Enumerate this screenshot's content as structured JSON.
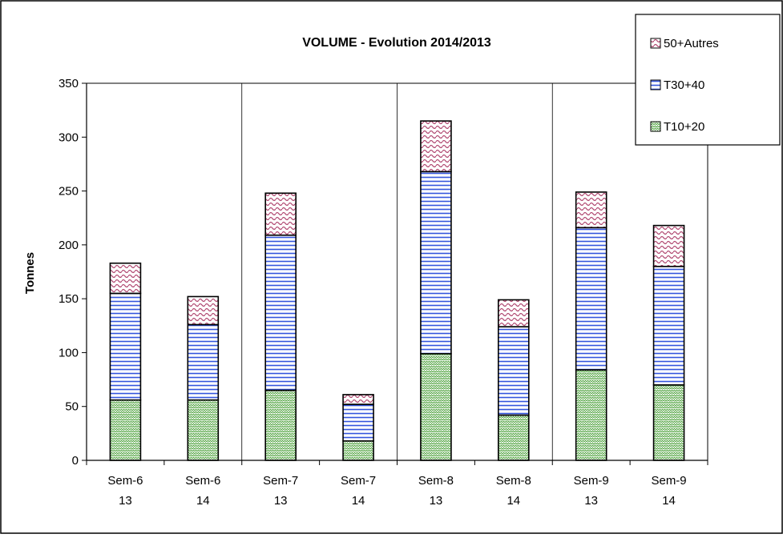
{
  "chart_data": {
    "type": "bar",
    "stacked": true,
    "title": "VOLUME - Evolution 2014/2013",
    "xlabel": "",
    "ylabel": "Tonnes",
    "ylim": [
      0,
      350
    ],
    "yticks": [
      0,
      50,
      100,
      150,
      200,
      250,
      300,
      350
    ],
    "grid": "vertical",
    "legend_position": "top-right",
    "categories": [
      [
        "Sem-6",
        "13"
      ],
      [
        "Sem-6",
        "14"
      ],
      [
        "Sem-7",
        "13"
      ],
      [
        "Sem-7",
        "14"
      ],
      [
        "Sem-8",
        "13"
      ],
      [
        "Sem-8",
        "14"
      ],
      [
        "Sem-9",
        "13"
      ],
      [
        "Sem-9",
        "14"
      ]
    ],
    "series": [
      {
        "name": "T10+20",
        "color": "#7ebd6e",
        "pattern": "zigzag-green",
        "values": [
          56,
          56,
          65,
          18,
          99,
          42,
          84,
          70
        ]
      },
      {
        "name": "T30+40",
        "color": "#4466dd",
        "pattern": "horizontal-blue",
        "values": [
          99,
          70,
          144,
          34,
          169,
          82,
          132,
          110
        ]
      },
      {
        "name": "50+Autres",
        "color": "#b04770",
        "pattern": "wave-pink",
        "values": [
          28,
          26,
          39,
          9,
          47,
          25,
          33,
          38
        ]
      }
    ],
    "legend_order": [
      "50+Autres",
      "T30+40",
      "T10+20"
    ]
  }
}
